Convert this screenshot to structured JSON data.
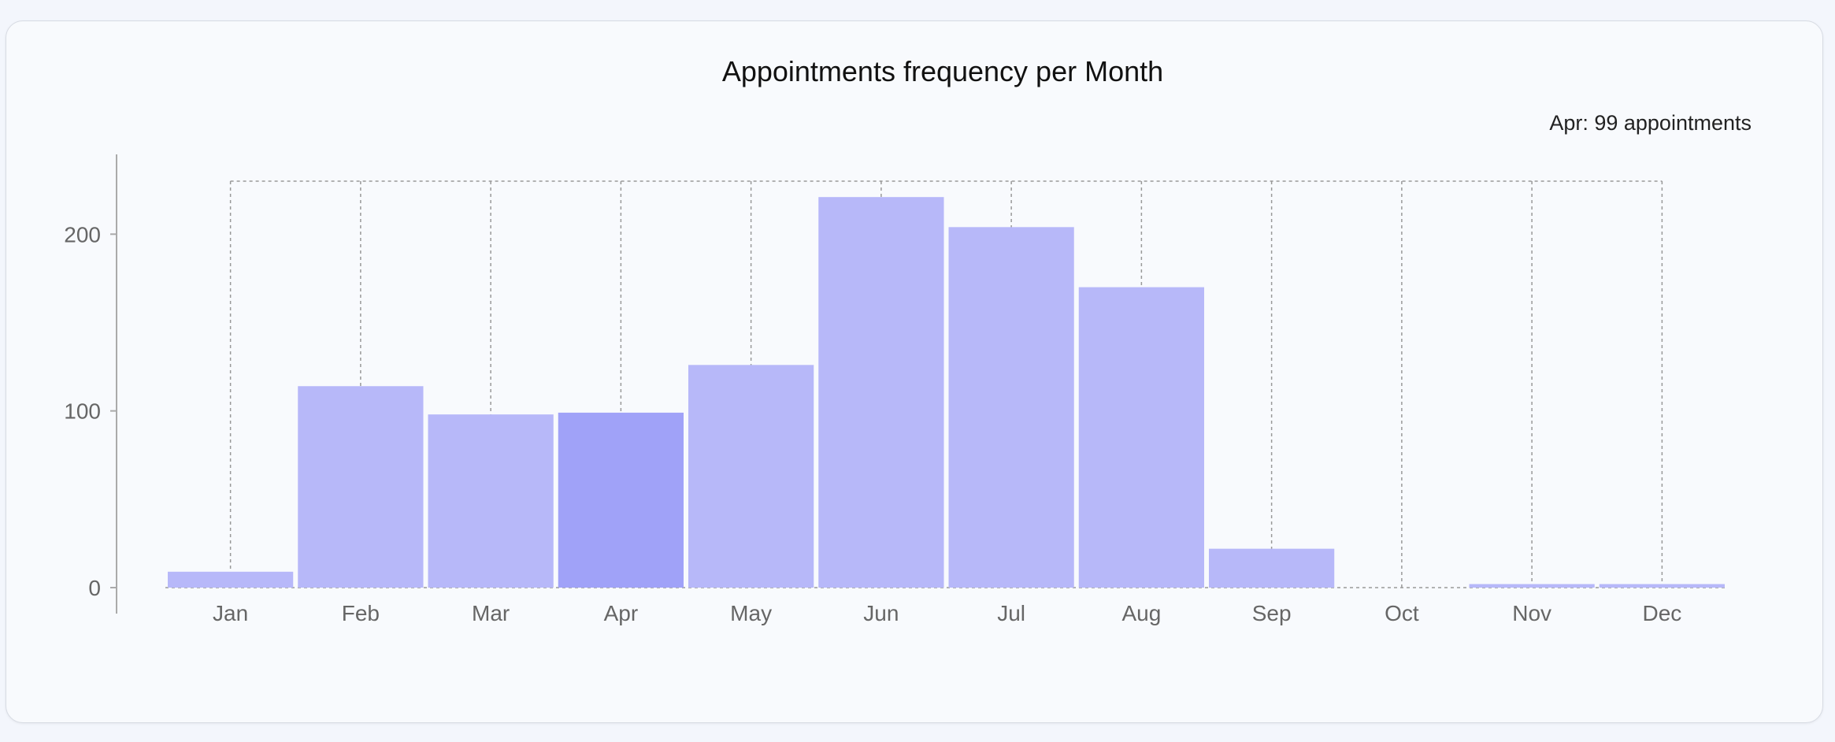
{
  "chart_data": {
    "type": "bar",
    "title": "Appointments frequency per Month",
    "xlabel": "",
    "ylabel": "",
    "categories": [
      "Jan",
      "Feb",
      "Mar",
      "Apr",
      "May",
      "Jun",
      "Jul",
      "Aug",
      "Sep",
      "Oct",
      "Nov",
      "Dec"
    ],
    "values": [
      9,
      114,
      98,
      99,
      126,
      221,
      204,
      170,
      22,
      0,
      2,
      2
    ],
    "ylim": [
      0,
      230
    ],
    "yticks": [
      0,
      100,
      200
    ],
    "highlighted_category": "Apr",
    "grid": "vertical-dashed",
    "colors": {
      "bar": "#b7b8f9",
      "bar_highlight": "#a0a2f8",
      "grid": "#999999",
      "axis": "#aaaaaa"
    }
  },
  "tooltip": {
    "text": "Apr: 99 appointments"
  }
}
